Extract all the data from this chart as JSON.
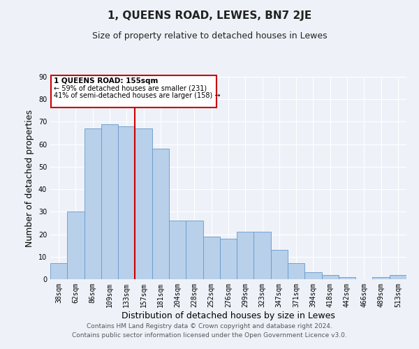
{
  "title": "1, QUEENS ROAD, LEWES, BN7 2JE",
  "subtitle": "Size of property relative to detached houses in Lewes",
  "xlabel": "Distribution of detached houses by size in Lewes",
  "ylabel": "Number of detached properties",
  "categories": [
    "38sqm",
    "62sqm",
    "86sqm",
    "109sqm",
    "133sqm",
    "157sqm",
    "181sqm",
    "204sqm",
    "228sqm",
    "252sqm",
    "276sqm",
    "299sqm",
    "323sqm",
    "347sqm",
    "371sqm",
    "394sqm",
    "418sqm",
    "442sqm",
    "466sqm",
    "489sqm",
    "513sqm"
  ],
  "values": [
    7,
    30,
    67,
    69,
    68,
    67,
    58,
    26,
    26,
    19,
    18,
    21,
    21,
    13,
    7,
    3,
    2,
    1,
    0,
    1,
    2
  ],
  "bar_color": "#b8d0ea",
  "bar_edge_color": "#6699cc",
  "vline_color": "#cc0000",
  "annotation_title": "1 QUEENS ROAD: 155sqm",
  "annotation_line1": "← 59% of detached houses are smaller (231)",
  "annotation_line2": "41% of semi-detached houses are larger (158) →",
  "annotation_box_color": "#ffffff",
  "annotation_box_edge": "#cc0000",
  "ylim": [
    0,
    90
  ],
  "yticks": [
    0,
    10,
    20,
    30,
    40,
    50,
    60,
    70,
    80,
    90
  ],
  "footer1": "Contains HM Land Registry data © Crown copyright and database right 2024.",
  "footer2": "Contains public sector information licensed under the Open Government Licence v3.0.",
  "bg_color": "#eef2f8",
  "grid_color": "#ffffff",
  "title_fontsize": 11,
  "subtitle_fontsize": 9,
  "axis_label_fontsize": 9,
  "tick_fontsize": 7,
  "footer_fontsize": 6.5
}
